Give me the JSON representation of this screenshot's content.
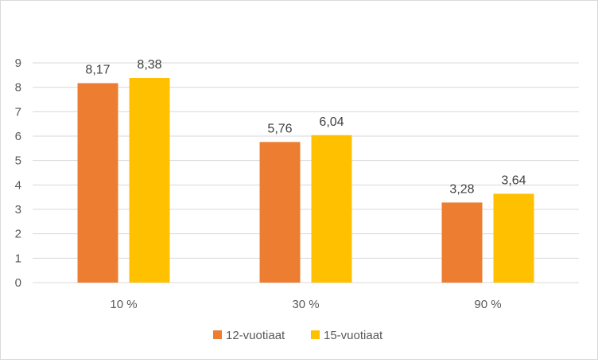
{
  "chart_data": {
    "type": "bar",
    "categories": [
      "10 %",
      "30 %",
      "90 %"
    ],
    "series": [
      {
        "name": "12-vuotiaat",
        "values": [
          8.17,
          5.76,
          3.28
        ],
        "labels": [
          "8,17",
          "5,76",
          "3,28"
        ],
        "color": "#ED7D31"
      },
      {
        "name": "15-vuotiaat",
        "values": [
          8.38,
          6.04,
          3.64
        ],
        "labels": [
          "8,38",
          "6,04",
          "3,64"
        ],
        "color": "#FFC000"
      }
    ],
    "ylim": [
      0,
      9
    ],
    "yticks": [
      "0",
      "1",
      "2",
      "3",
      "4",
      "5",
      "6",
      "7",
      "8",
      "9"
    ],
    "grid": true,
    "legend_position": "bottom",
    "gridline_color": "#d9d9d9"
  }
}
